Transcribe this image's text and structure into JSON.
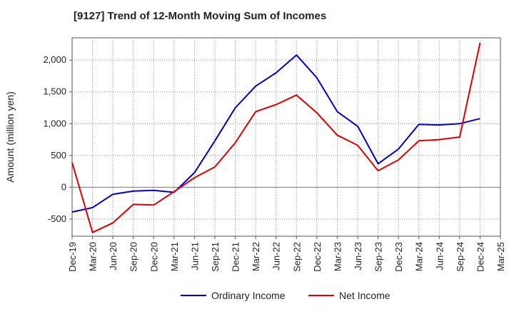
{
  "chart_data": {
    "type": "line",
    "title": "[9127]  Trend of 12-Month Moving Sum of Incomes",
    "xlabel": "",
    "ylabel": "Amount (million yen)",
    "ylim": [
      -770,
      2350
    ],
    "yticks": [
      -500,
      0,
      500,
      1000,
      1500,
      2000
    ],
    "ytick_labels": [
      "-500",
      "0",
      "500",
      "1,000",
      "1,500",
      "2,000"
    ],
    "categories": [
      "Dec-19",
      "Mar-20",
      "Jun-20",
      "Sep-20",
      "Dec-20",
      "Mar-21",
      "Jun-21",
      "Sep-21",
      "Dec-21",
      "Mar-22",
      "Jun-22",
      "Sep-22",
      "Dec-22",
      "Mar-23",
      "Jun-23",
      "Sep-23",
      "Dec-23",
      "Mar-24",
      "Jun-24",
      "Sep-24",
      "Dec-24",
      "Mar-25"
    ],
    "x_tick_labels": [
      "Dec-19",
      "Mar-20",
      "Jun-20",
      "Sep-20",
      "Dec-20",
      "Mar-21",
      "Jun-21",
      "Sep-21",
      "Dec-21",
      "Mar-22",
      "Jun-22",
      "Sep-22",
      "Dec-22",
      "Mar-23",
      "Jun-23",
      "Sep-23",
      "Dec-23",
      "Mar-24",
      "Jun-24",
      "Sep-24",
      "Dec-24",
      "Mar-25"
    ],
    "grid": true,
    "legend_position": "bottom",
    "series": [
      {
        "name": "Ordinary Income",
        "color": "#0000cc",
        "values": [
          -390,
          -320,
          -110,
          -60,
          -50,
          -80,
          230,
          730,
          1250,
          1590,
          1800,
          2080,
          1720,
          1190,
          960,
          370,
          600,
          990,
          980,
          1000,
          1080,
          null
        ]
      },
      {
        "name": "Net Income",
        "color": "#dd0000",
        "values": [
          390,
          -710,
          -560,
          -270,
          -280,
          -70,
          150,
          320,
          700,
          1190,
          1300,
          1450,
          1170,
          820,
          660,
          260,
          430,
          730,
          750,
          790,
          2270,
          null
        ]
      }
    ]
  }
}
